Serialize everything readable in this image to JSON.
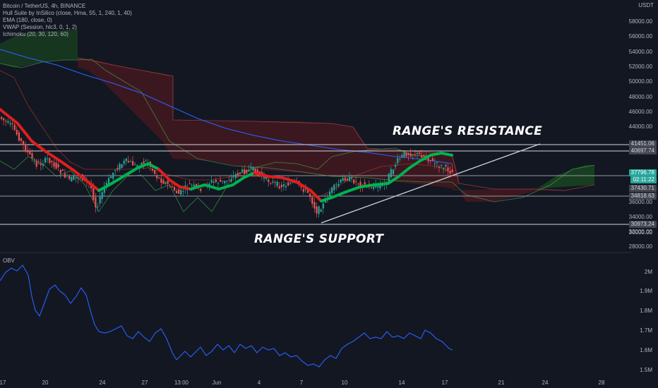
{
  "header": {
    "symbol": "Bitcoin / TetherUS, 4h, BINANCE",
    "indicators": [
      "Hull Suite by InSilico (close, Hma, 55, 1, 240, 1, 40)",
      "EMA (180, close, 0)",
      "VWAP (Session, hlc3, 0, 1, 2)",
      "Ichimoku (20, 30, 120, 60)"
    ],
    "currency": "USDT"
  },
  "annotations": {
    "resistance": "RANGE'S RESISTANCE",
    "support": "RANGE'S SUPPORT"
  },
  "price_axis": {
    "ticks": [
      "58000.00",
      "56000.00",
      "54000.00",
      "52000.00",
      "50000.00",
      "48000.00",
      "46000.00",
      "44000.00",
      "36000.00",
      "34000.00",
      "32000.00",
      "30000.00",
      "28000.00"
    ]
  },
  "price_labels": [
    {
      "text": "41451.06",
      "bg": "#434651",
      "fg": "#d1d4dc"
    },
    {
      "text": "40697.74",
      "bg": "#434651",
      "fg": "#d1d4dc"
    },
    {
      "text": "37796.78",
      "bg": "#26a69a",
      "fg": "#ffffff"
    },
    {
      "text": "02:11:22",
      "bg": "#26a69a",
      "fg": "#ffffff"
    },
    {
      "text": "37430.71",
      "bg": "#434651",
      "fg": "#d1d4dc"
    },
    {
      "text": "34818.63",
      "bg": "#434651",
      "fg": "#d1d4dc"
    },
    {
      "text": "30973.24",
      "bg": "#434651",
      "fg": "#d1d4dc"
    }
  ],
  "obv": {
    "label": "OBV",
    "ticks": [
      "2M",
      "1.9M",
      "1.8M",
      "1.7M",
      "1.6M",
      "1.5M"
    ]
  },
  "time_axis": {
    "ticks": [
      "17",
      "20",
      "24",
      "27",
      "13:00",
      "Jun",
      "4",
      "7",
      "10",
      "14",
      "17",
      "21",
      "24",
      "28"
    ]
  },
  "colors": {
    "background": "#131722",
    "up": "#26a69a",
    "down": "#ef5350",
    "hull_up": "#00b34d",
    "hull_down": "#e01e1e",
    "ema": "#2962ff",
    "obv": "#2962ff"
  }
}
